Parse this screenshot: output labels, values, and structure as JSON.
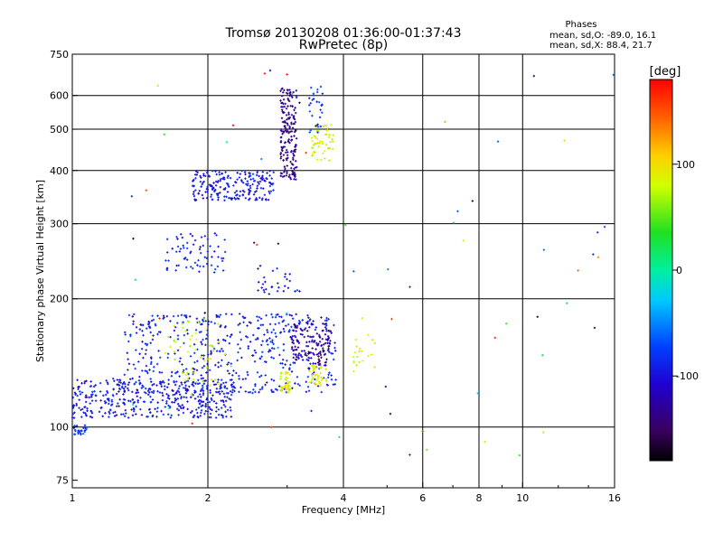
{
  "chart_data": {
    "type": "scatter",
    "title": "Tromsø 20130208 01:36:00-01:37:43",
    "subtitle": "RwPretec (8p)",
    "xlabel": "Frequency [MHz]",
    "ylabel": "Stationary phase Virtual Height [km]",
    "x_scale": "log",
    "y_scale": "log",
    "xlim": [
      1,
      16
    ],
    "ylim": [
      72,
      750
    ],
    "x_ticks": [
      1,
      2,
      4,
      6,
      8,
      10,
      16
    ],
    "x_tick_labels": [
      "1",
      "2",
      "4",
      "6",
      "8",
      "10",
      "16"
    ],
    "x_gridlines": [
      2,
      4,
      6,
      8,
      10
    ],
    "y_ticks": [
      75,
      100,
      200,
      300,
      400,
      500,
      600,
      750
    ],
    "y_tick_labels": [
      "75",
      "100",
      "200",
      "300",
      "400",
      "500",
      "600",
      "750"
    ],
    "y_gridlines": [
      100,
      200,
      300,
      400,
      500,
      600
    ],
    "grid": true,
    "stats": {
      "heading": "Phases",
      "line_o": "mean, sd,O: -89.0, 16.1",
      "line_x": "mean, sd,X:  88.4, 21.7"
    },
    "colorbar": {
      "label": "[deg]",
      "range": [
        -180,
        180
      ],
      "ticks": [
        100,
        0,
        -100
      ],
      "tick_labels": [
        "100",
        "0",
        "-100"
      ]
    },
    "clusters": [
      {
        "x": [
          1.0,
          2.3
        ],
        "y": [
          105,
          130
        ],
        "phase": -95,
        "n": 420
      },
      {
        "x": [
          1.0,
          1.08
        ],
        "y": [
          96,
          101
        ],
        "phase": -80,
        "n": 25
      },
      {
        "x": [
          1.3,
          3.85
        ],
        "y": [
          120,
          185
        ],
        "phase": -90,
        "n": 500
      },
      {
        "x": [
          1.6,
          2.2
        ],
        "y": [
          125,
          180
        ],
        "phase": 80,
        "n": 50
      },
      {
        "x": [
          2.9,
          3.05
        ],
        "y": [
          120,
          135
        ],
        "phase": 90,
        "n": 40
      },
      {
        "x": [
          3.35,
          3.7
        ],
        "y": [
          125,
          140
        ],
        "phase": 88,
        "n": 40
      },
      {
        "x": [
          3.05,
          3.75
        ],
        "y": [
          140,
          175
        ],
        "phase": -135,
        "n": 120
      },
      {
        "x": [
          1.6,
          2.2
        ],
        "y": [
          230,
          285
        ],
        "phase": -90,
        "n": 70
      },
      {
        "x": [
          2.55,
          3.2
        ],
        "y": [
          205,
          240
        ],
        "phase": -95,
        "n": 30
      },
      {
        "x": [
          1.85,
          2.8
        ],
        "y": [
          340,
          400
        ],
        "phase": -95,
        "n": 210
      },
      {
        "x": [
          2.9,
          3.15
        ],
        "y": [
          380,
          630
        ],
        "phase": -135,
        "n": 180
      },
      {
        "x": [
          3.4,
          3.8
        ],
        "y": [
          420,
          520
        ],
        "phase": 85,
        "n": 50
      },
      {
        "x": [
          3.35,
          3.6
        ],
        "y": [
          480,
          640
        ],
        "phase": -80,
        "n": 30
      },
      {
        "x": [
          4.2,
          4.7
        ],
        "y": [
          135,
          165
        ],
        "phase": 85,
        "n": 20
      },
      {
        "x": [
          1.2,
          16
        ],
        "y": [
          85,
          700
        ],
        "phase": 0,
        "n": 70
      }
    ]
  }
}
